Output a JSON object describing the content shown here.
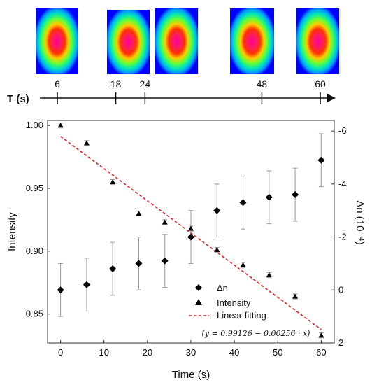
{
  "timeline": {
    "title": "T (s)",
    "ticks": [
      "6",
      "18",
      "24",
      "48",
      "60"
    ],
    "values": [
      6,
      18,
      24,
      48,
      60
    ]
  },
  "chart_data": {
    "type": "scatter",
    "xlabel": "Time (s)",
    "ylabel": "Intensity",
    "y2label": "Δn (10⁻⁴)",
    "xlim": [
      -3,
      63
    ],
    "ylim": [
      0.827,
      1.004
    ],
    "y2lim": [
      -6.4,
      2.0
    ],
    "y2_inverted": true,
    "x_ticks": [
      "0",
      "10",
      "20",
      "30",
      "40",
      "50",
      "60"
    ],
    "y_ticks": [
      "0.85",
      "0.90",
      "0.95",
      "1.00"
    ],
    "y2_ticks": [
      "-6",
      "-4",
      "-2",
      "0",
      "2"
    ],
    "grid": false,
    "legend_position": "lower-right",
    "series": [
      {
        "name": "Δn",
        "axis": "right",
        "marker": "diamond",
        "x": [
          0,
          6,
          12,
          18,
          24,
          30,
          36,
          42,
          48,
          54,
          60
        ],
        "y": [
          0.0,
          -0.2,
          -0.8,
          -1.0,
          -1.1,
          -2.0,
          -3.0,
          -3.3,
          -3.5,
          -3.6,
          -4.9
        ],
        "err": [
          1.0,
          1.0,
          1.0,
          1.0,
          1.0,
          1.0,
          1.0,
          1.0,
          1.0,
          1.0,
          1.0
        ]
      },
      {
        "name": "Intensity",
        "axis": "left",
        "marker": "triangle",
        "x": [
          0,
          6,
          12,
          18,
          24,
          30,
          36,
          42,
          48,
          54,
          60
        ],
        "y": [
          1.0,
          0.986,
          0.955,
          0.93,
          0.923,
          0.918,
          0.901,
          0.889,
          0.881,
          0.864,
          0.833
        ],
        "err": [
          0.002,
          0.002,
          0.002,
          0.002,
          0.002,
          0.002,
          0.002,
          0.002,
          0.002,
          0.002,
          0.002
        ]
      },
      {
        "name": "Linear fitting",
        "axis": "left",
        "type": "line",
        "style": "dashed",
        "x": [
          0,
          60
        ],
        "y": [
          0.99126,
          0.83766
        ]
      }
    ],
    "annotation": "(y = 0.99126 − 0.00256 · x)",
    "colors": {
      "fit_line": "#dd2222",
      "markers": "#000000",
      "errorbars": "#999999"
    }
  }
}
